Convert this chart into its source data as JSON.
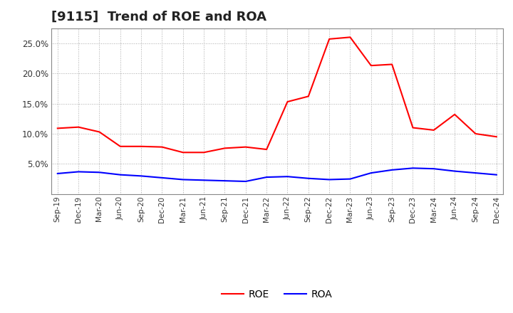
{
  "title": "[9115]  Trend of ROE and ROA",
  "x_labels": [
    "Sep-19",
    "Dec-19",
    "Mar-20",
    "Jun-20",
    "Sep-20",
    "Dec-20",
    "Mar-21",
    "Jun-21",
    "Sep-21",
    "Dec-21",
    "Mar-22",
    "Jun-22",
    "Sep-22",
    "Dec-22",
    "Mar-23",
    "Jun-23",
    "Sep-23",
    "Dec-23",
    "Mar-24",
    "Jun-24",
    "Sep-24",
    "Dec-24"
  ],
  "roe": [
    10.9,
    11.1,
    10.3,
    7.9,
    7.9,
    7.8,
    6.9,
    6.9,
    7.6,
    7.8,
    7.4,
    15.3,
    16.2,
    25.7,
    26.0,
    21.3,
    21.5,
    11.0,
    10.6,
    13.2,
    10.0,
    9.5
  ],
  "roa": [
    3.4,
    3.7,
    3.6,
    3.2,
    3.0,
    2.7,
    2.4,
    2.3,
    2.2,
    2.1,
    2.8,
    2.9,
    2.6,
    2.4,
    2.5,
    3.5,
    4.0,
    4.3,
    4.2,
    3.8,
    3.5,
    3.2
  ],
  "roe_color": "#ff0000",
  "roa_color": "#0000ff",
  "ylim_max": 27.5,
  "yticks": [
    5.0,
    10.0,
    15.0,
    20.0,
    25.0
  ],
  "ytick_labels": [
    "5.0%",
    "10.0%",
    "15.0%",
    "20.0%",
    "25.0%"
  ],
  "background_color": "#ffffff",
  "grid_color": "#aaaaaa",
  "title_fontsize": 13,
  "legend_entries": [
    "ROE",
    "ROA"
  ]
}
